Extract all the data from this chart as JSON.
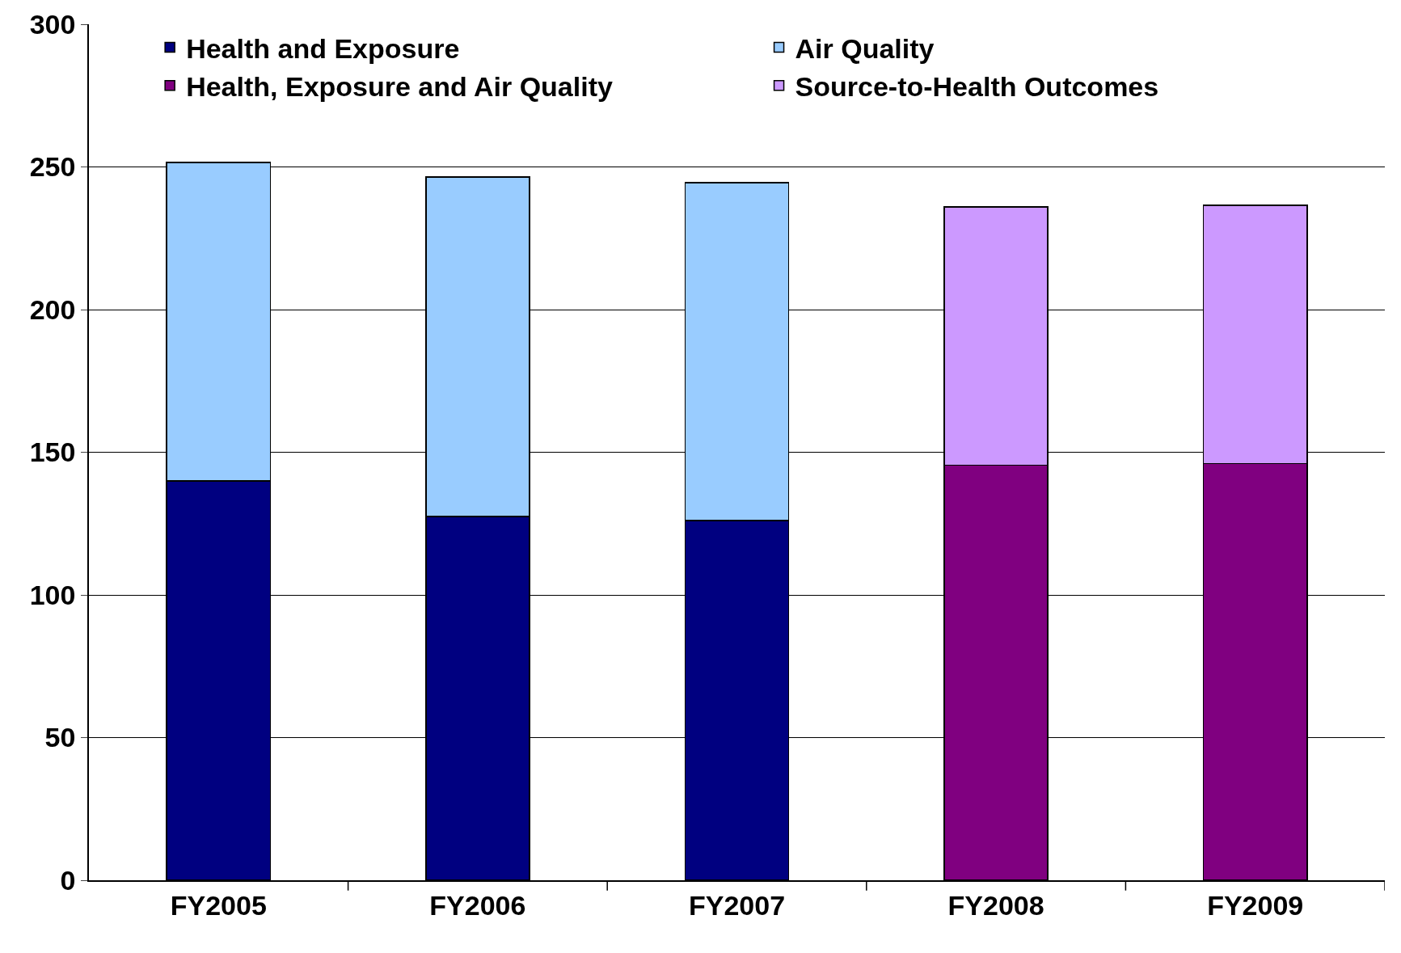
{
  "chart_data": {
    "type": "bar",
    "stacked": true,
    "categories": [
      "FY2005",
      "FY2006",
      "FY2007",
      "FY2008",
      "FY2009"
    ],
    "series": [
      {
        "name": "Health and Exposure",
        "color": "#000080",
        "values": [
          140,
          127.5,
          126,
          null,
          null
        ]
      },
      {
        "name": "Air Quality",
        "color": "#99ccff",
        "values": [
          111.5,
          119,
          118.5,
          null,
          null
        ]
      },
      {
        "name": "Health, Exposure and Air Quality",
        "color": "#800080",
        "values": [
          null,
          null,
          null,
          145.5,
          146
        ]
      },
      {
        "name": "Source-to-Health Outcomes",
        "color": "#cc99ff",
        "values": [
          null,
          null,
          null,
          90.5,
          90.5
        ]
      }
    ],
    "ylim": [
      0,
      300
    ],
    "yticks": [
      0,
      50,
      100,
      150,
      200,
      250,
      300
    ],
    "grid": "y",
    "legend": "top"
  }
}
